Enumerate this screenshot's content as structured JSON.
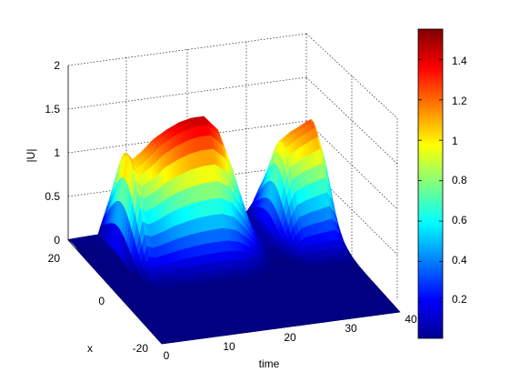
{
  "chart_data": {
    "type": "surface",
    "title": "",
    "xlabel": "time",
    "ylabel": "x",
    "zlabel": "|U|",
    "x_ticks": [
      "0",
      "10",
      "20",
      "30",
      "40"
    ],
    "y_ticks": [
      "-20",
      "0",
      "20"
    ],
    "z_ticks": [
      "0",
      "0.5",
      "1",
      "1.5",
      "2"
    ],
    "xlim": [
      0,
      40
    ],
    "ylim": [
      -25,
      25
    ],
    "zlim": [
      0,
      2
    ],
    "grid": true,
    "colormap": "jet",
    "clim": [
      0.02,
      1.55
    ],
    "colorbar_ticks": [
      "0.2",
      "0.4",
      "0.6",
      "0.8",
      "1",
      "1.2",
      "1.4"
    ],
    "colorbar_values": [
      0.2,
      0.4,
      0.6,
      0.8,
      1.0,
      1.2,
      1.4
    ],
    "edge_profile": {
      "time": [
        0,
        5,
        6,
        7,
        8,
        10,
        12,
        14,
        16,
        18,
        20,
        22,
        24,
        26,
        27,
        28,
        29,
        30,
        31,
        32,
        33,
        34,
        35,
        36,
        37,
        38,
        39,
        40
      ],
      "abs_u": [
        0.02,
        0.05,
        0.6,
        1.15,
        1.05,
        1.15,
        1.28,
        1.36,
        1.42,
        1.45,
        1.45,
        1.3,
        0.9,
        0.4,
        0.2,
        0.1,
        0.08,
        0.15,
        0.4,
        0.8,
        1.05,
        1.1,
        1.15,
        1.18,
        1.22,
        1.25,
        1.0,
        0.3
      ]
    }
  }
}
